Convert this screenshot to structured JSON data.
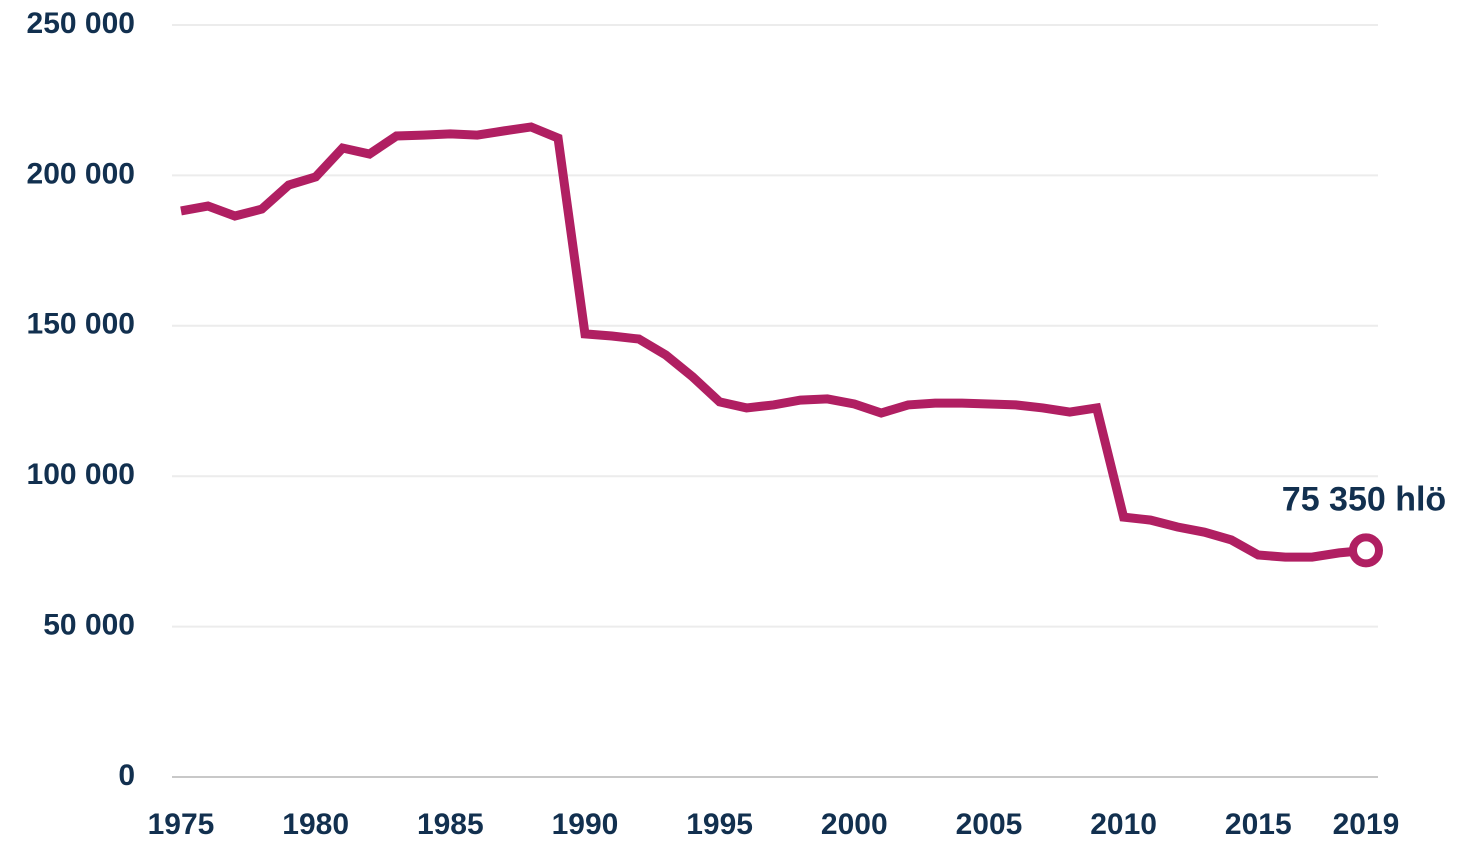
{
  "chart_data": {
    "type": "line",
    "x": [
      1975,
      1976,
      1977,
      1978,
      1979,
      1980,
      1981,
      1982,
      1983,
      1984,
      1985,
      1986,
      1987,
      1988,
      1989,
      1990,
      1991,
      1992,
      1993,
      1994,
      1995,
      1996,
      1997,
      1998,
      1999,
      2000,
      2001,
      2002,
      2003,
      2004,
      2005,
      2006,
      2007,
      2008,
      2009,
      2010,
      2011,
      2012,
      2013,
      2014,
      2015,
      2016,
      2017,
      2018,
      2019
    ],
    "series": [
      {
        "color": "#b01f62",
        "values": [
          188200,
          189800,
          186500,
          188800,
          196800,
          199500,
          209100,
          207100,
          213100,
          213400,
          213800,
          213400,
          214800,
          216100,
          212400,
          147300,
          146600,
          145600,
          140300,
          133000,
          124700,
          122700,
          123700,
          125300,
          125700,
          124000,
          121000,
          123700,
          124300,
          124300,
          124000,
          123700,
          122700,
          121300,
          122700,
          86400,
          85400,
          83100,
          81400,
          78800,
          73800,
          73100,
          73100,
          74500,
          75350
        ],
        "value_labels": [
          null,
          null,
          null,
          null,
          null,
          null,
          null,
          null,
          null,
          null,
          null,
          null,
          null,
          null,
          null,
          null,
          null,
          null,
          null,
          null,
          null,
          null,
          null,
          null,
          null,
          null,
          null,
          null,
          null,
          null,
          null,
          null,
          null,
          null,
          null,
          null,
          null,
          null,
          null,
          null,
          null,
          null,
          null,
          null,
          "75 350 hlö"
        ]
      }
    ],
    "xlim": [
      1975,
      2019
    ],
    "xticks": [
      1975,
      1980,
      1985,
      1990,
      1995,
      2000,
      2005,
      2010,
      2015,
      2019
    ],
    "ylim": [
      0,
      250000
    ],
    "yticks": [
      0,
      {
        "value": 50000,
        "label": "50 000"
      },
      {
        "value": 100000,
        "label": "100 000"
      },
      {
        "value": 150000,
        "label": "150 000"
      },
      {
        "value": 200000,
        "label": "200 000"
      },
      {
        "value": 250000,
        "label": "250 000"
      }
    ],
    "grid": true
  }
}
